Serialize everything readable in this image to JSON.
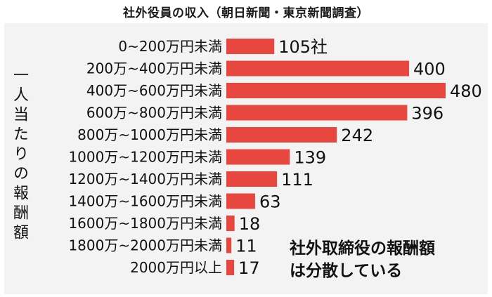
{
  "chart_data": {
    "type": "bar",
    "orientation": "horizontal",
    "title": "社外役員の収入（朝日新聞・東京新聞調査）",
    "ylabel": "一人当たりの報酬額",
    "categories": [
      "0~200万円未満",
      "200万~400万円未満",
      "400万~600万円未満",
      "600万~800万円未満",
      "800万~1000万円未満",
      "1000万~1200万円未満",
      "1200万~1400万円未満",
      "1400万~1600万円未満",
      "1600万~1800万円未満",
      "1800万~2000万円未満",
      "2000万円以上"
    ],
    "values": [
      105,
      400,
      480,
      396,
      242,
      139,
      111,
      63,
      18,
      11,
      17
    ],
    "value_labels": [
      "105社",
      "400",
      "480",
      "396",
      "242",
      "139",
      "111",
      "63",
      "18",
      "11",
      "17"
    ],
    "annotation": [
      "社外取締役の報酬額",
      "は分散している"
    ],
    "bar_color": "#e8473f",
    "grid": false
  }
}
